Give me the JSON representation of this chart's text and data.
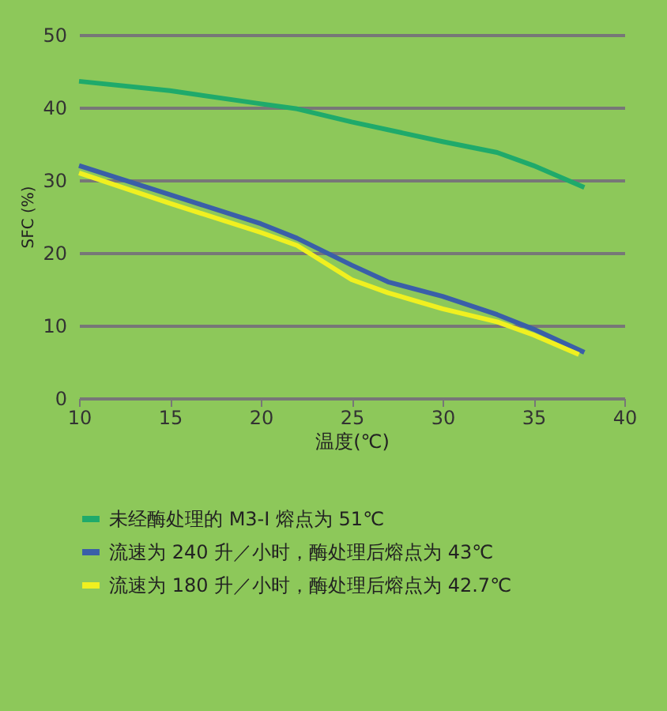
{
  "chart_data": {
    "type": "line",
    "xlabel": "温度(℃)",
    "ylabel": "SFC (%)",
    "xlim": [
      10,
      40
    ],
    "xticks": [
      10,
      15,
      20,
      25,
      30,
      35,
      40
    ],
    "ylim": [
      0,
      50
    ],
    "yticks": [
      0,
      10,
      20,
      30,
      40,
      50
    ],
    "grid": "y",
    "legend": "bottom",
    "line_style": "solid",
    "marker": "none",
    "series": [
      {
        "name": "未经酶处理的 M3-I 熔点为 51℃",
        "color": "#1faa6b",
        "x": [
          10,
          15,
          20,
          22,
          25,
          30,
          33,
          35,
          37.8
        ],
        "values": [
          43.6,
          42.3,
          40.5,
          39.8,
          38,
          35.3,
          33.8,
          32,
          29
        ]
      },
      {
        "name": "流速为 240 升／小时，酶处理后熔点为 43℃",
        "color": "#3a5fa8",
        "x": [
          10,
          15,
          20,
          22,
          25,
          27,
          30,
          33,
          35,
          37.8
        ],
        "values": [
          32,
          28,
          24,
          22,
          18.3,
          16,
          14,
          11.5,
          9.5,
          6.3
        ]
      },
      {
        "name": "流速为 180 升／小时，酶处理后熔点为 42.7℃",
        "color": "#f0f020",
        "x": [
          10,
          15,
          20,
          22,
          25,
          27,
          30,
          33,
          35,
          37.5
        ],
        "values": [
          31,
          26.8,
          22.8,
          21,
          16.3,
          14.5,
          12.3,
          10.5,
          8.7,
          6
        ]
      }
    ]
  }
}
